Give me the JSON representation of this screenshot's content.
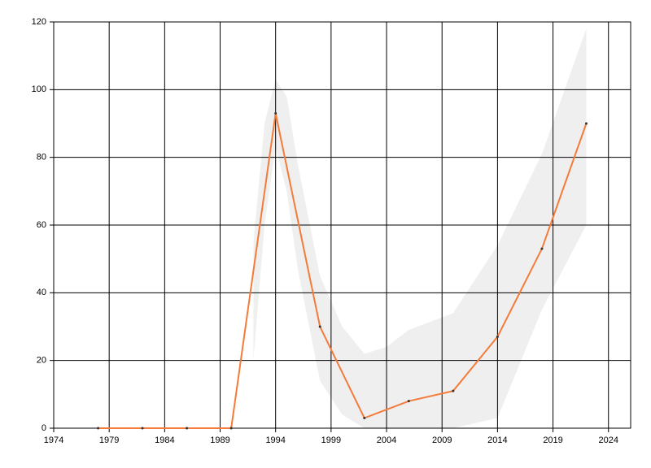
{
  "chart_data": {
    "type": "line",
    "x": [
      1978,
      1982,
      1986,
      1990,
      1994,
      1998,
      2002,
      2006,
      2010,
      2014,
      2018,
      2022
    ],
    "values": [
      0,
      0,
      0,
      0,
      93,
      30,
      3,
      8,
      11,
      27,
      53,
      90
    ],
    "color": "#f47b3a",
    "marker_color": "#333333",
    "band": {
      "color": "#efefef",
      "x": [
        1992,
        1993,
        1994,
        1995,
        1996,
        1998,
        2000,
        2002,
        2004,
        2006,
        2010,
        2014,
        2018,
        2022
      ],
      "upper": [
        55,
        90,
        103,
        98,
        78,
        45,
        30,
        22,
        24,
        29,
        34,
        54,
        81,
        118
      ],
      "lower": [
        20,
        60,
        83,
        70,
        47,
        14,
        4,
        0,
        0,
        0,
        0,
        3,
        35,
        60
      ]
    },
    "xlim": [
      1974,
      2026
    ],
    "xticks": [
      1974,
      1979,
      1984,
      1989,
      1994,
      1999,
      2004,
      2009,
      2014,
      2019,
      2024
    ],
    "ylim": [
      0,
      120
    ],
    "yticks": [
      0,
      20,
      40,
      60,
      80,
      100,
      120
    ],
    "grid": true
  }
}
